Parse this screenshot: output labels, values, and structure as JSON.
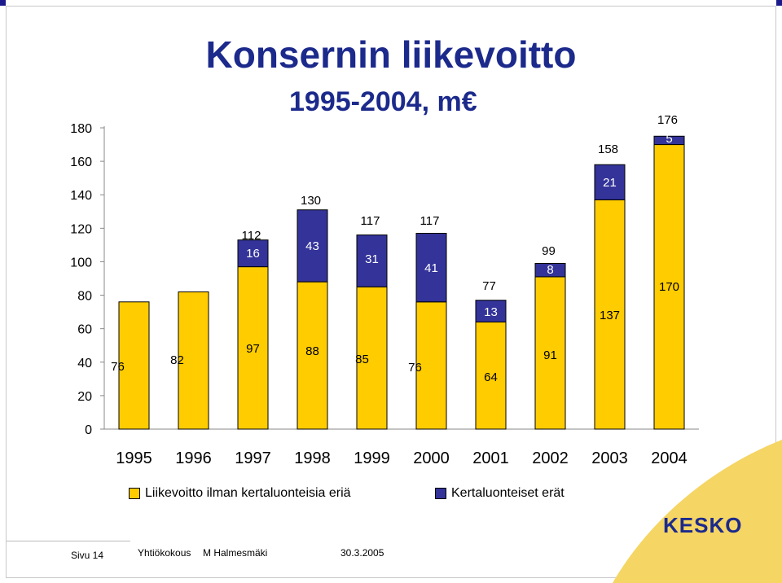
{
  "title": "Konsernin liikevoitto",
  "subtitle": "1995-2004, m€",
  "colors": {
    "title": "#1c2a8c",
    "series_base": "#ffcc00",
    "series_extra": "#333399",
    "logo_deco": "#f5d563"
  },
  "chart_data": {
    "type": "bar",
    "stacked": true,
    "categories": [
      "1995",
      "1996",
      "1997",
      "1998",
      "1999",
      "2000",
      "2001",
      "2002",
      "2003",
      "2004"
    ],
    "series": [
      {
        "name": "Liikevoitto ilman kertaluonteisia eriä",
        "values": [
          76,
          82,
          97,
          88,
          85,
          76,
          64,
          91,
          137,
          170
        ]
      },
      {
        "name": "Kertaluonteiset erät",
        "values": [
          0,
          0,
          16,
          43,
          31,
          41,
          13,
          8,
          21,
          5
        ]
      }
    ],
    "totals": [
      "",
      "",
      "112",
      "130",
      "117",
      "117",
      "77",
      "99",
      "158",
      "176"
    ],
    "base_labels": [
      "76",
      "82",
      "97",
      "88",
      "85",
      "76",
      "64",
      "91",
      "137",
      "170"
    ],
    "extra_labels": [
      "",
      "",
      "16",
      "43",
      "31",
      "41",
      "13",
      "8",
      "21",
      "5"
    ],
    "yticks": [
      "0",
      "20",
      "40",
      "60",
      "80",
      "100",
      "120",
      "140",
      "160",
      "180"
    ],
    "ylim": [
      0,
      180
    ],
    "grid": false,
    "legend": "bottom"
  },
  "legend": {
    "item1": "Liikevoitto ilman kertaluonteisia eriä",
    "item2": "Kertaluonteiset erät"
  },
  "footer": {
    "page": "Sivu 14",
    "event": "Yhtiökokous",
    "presenter": "M Halmesmäki",
    "date": "30.3.2005"
  },
  "logo": {
    "text": "KESKO"
  }
}
